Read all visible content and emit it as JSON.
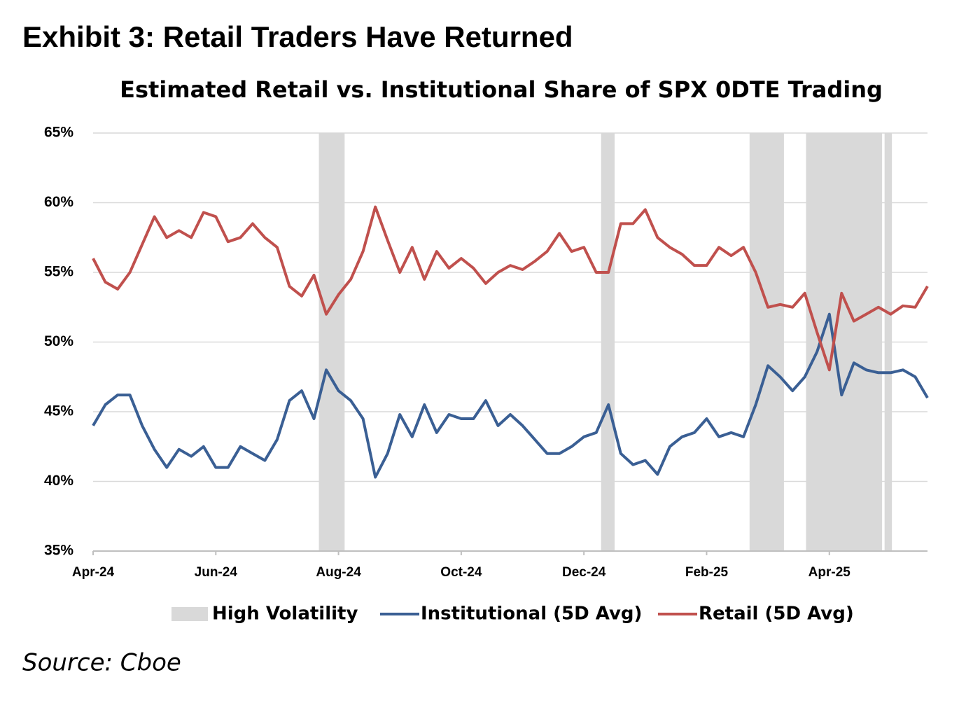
{
  "chart_data": {
    "type": "line",
    "title": "Exhibit 3: Retail Traders Have Returned",
    "subtitle": "Estimated Retail vs. Institutional Share of SPX 0DTE Trading",
    "source": "Source: Cboe",
    "categories": [
      "Apr-24",
      null,
      null,
      null,
      null,
      null,
      null,
      null,
      null,
      null,
      "Jun-24",
      null,
      null,
      null,
      null,
      null,
      null,
      null,
      null,
      null,
      "Aug-24",
      null,
      null,
      null,
      null,
      null,
      null,
      null,
      null,
      null,
      "Oct-24",
      null,
      null,
      null,
      null,
      null,
      null,
      null,
      null,
      null,
      "Dec-24",
      null,
      null,
      null,
      null,
      null,
      null,
      null,
      null,
      null,
      "Feb-25",
      null,
      null,
      null,
      null,
      null,
      null,
      null,
      null,
      null,
      "Apr-25",
      null,
      null,
      null,
      null,
      null,
      null,
      null,
      null
    ],
    "high_volatility": {
      "name": "High Volatility",
      "color": "#d9d9d9",
      "ranges": [
        [
          18.4,
          20.5
        ],
        [
          41.4,
          42.5
        ],
        [
          53.5,
          56.3
        ],
        [
          58.1,
          64.3
        ],
        [
          64.5,
          65.1
        ]
      ]
    },
    "series": [
      {
        "name": "Institutional (5D Avg)",
        "color": "#3a5f94",
        "values": [
          44,
          45.5,
          46.2,
          46.2,
          44,
          42.3,
          41,
          42.3,
          41.8,
          42.5,
          41,
          41,
          42.5,
          42,
          41.5,
          43,
          45.8,
          46.5,
          44.5,
          48,
          46.5,
          45.8,
          44.5,
          40.3,
          42,
          44.8,
          43.2,
          45.5,
          43.5,
          44.8,
          44.5,
          44.5,
          45.8,
          44,
          44.8,
          44,
          43,
          42,
          42,
          42.5,
          43.2,
          43.5,
          45.5,
          42,
          41.2,
          41.5,
          40.5,
          42.5,
          43.2,
          43.5,
          44.5,
          43.2,
          43.5,
          43.2,
          45.5,
          48.3,
          47.5,
          46.5,
          47.5,
          49.3,
          52,
          46.2,
          48.5,
          48,
          47.8,
          47.8,
          48,
          47.5,
          46
        ]
      },
      {
        "name": "Retail (5D Avg)",
        "color": "#c0504d",
        "values": [
          56,
          54.3,
          53.8,
          55,
          57,
          59,
          57.5,
          58,
          57.5,
          59.3,
          59,
          57.2,
          57.5,
          58.5,
          57.5,
          56.8,
          54,
          53.3,
          54.8,
          52,
          53.4,
          54.5,
          56.5,
          59.7,
          57.3,
          55,
          56.8,
          54.5,
          56.5,
          55.3,
          56,
          55.3,
          54.2,
          55,
          55.5,
          55.2,
          55.8,
          56.5,
          57.8,
          56.5,
          56.8,
          55,
          55,
          58.5,
          58.5,
          59.5,
          57.5,
          56.8,
          56.3,
          55.5,
          55.5,
          56.8,
          56.2,
          56.8,
          55,
          52.5,
          52.7,
          52.5,
          53.5,
          50.7,
          48,
          53.5,
          51.5,
          52,
          52.5,
          52,
          52.6,
          52.5,
          54
        ]
      }
    ],
    "ylim": [
      35,
      65
    ],
    "yticks": [
      {
        "value": 35,
        "label": "35%"
      },
      {
        "value": 40,
        "label": "40%"
      },
      {
        "value": 45,
        "label": "45%"
      },
      {
        "value": 50,
        "label": "50%"
      },
      {
        "value": 55,
        "label": "55%"
      },
      {
        "value": 60,
        "label": "60%"
      },
      {
        "value": 65,
        "label": "65%"
      }
    ],
    "grid": true
  }
}
